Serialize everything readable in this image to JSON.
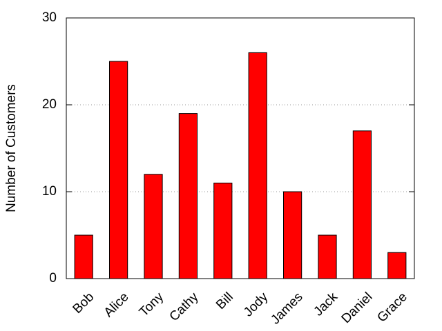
{
  "chart_data": {
    "type": "bar",
    "y_label": "Number of Customers",
    "categories": [
      "Bob",
      "Alice",
      "Tony",
      "Cathy",
      "Bill",
      "Jody",
      "James",
      "Jack",
      "Daniel",
      "Grace"
    ],
    "values": [
      5,
      25,
      12,
      19,
      11,
      26,
      10,
      5,
      17,
      3
    ],
    "color": "#ff0000",
    "ylim": [
      0,
      30
    ],
    "yticks": [
      0,
      10,
      20,
      30
    ],
    "grid": true
  }
}
